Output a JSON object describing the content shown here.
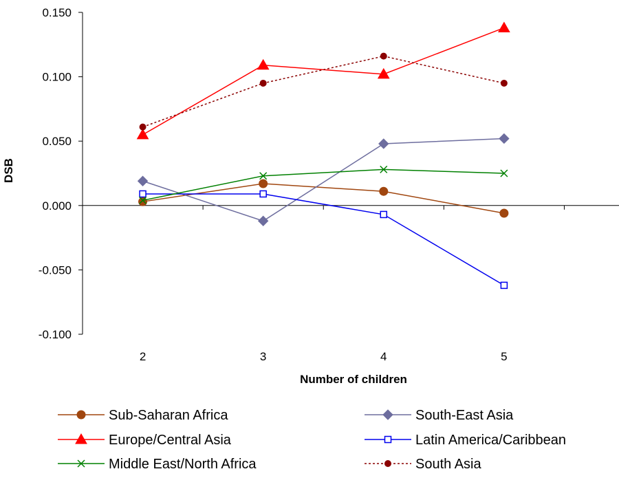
{
  "chart_data": {
    "type": "line",
    "title": "",
    "xlabel": "Number of children",
    "ylabel": "DSB",
    "categories": [
      "2",
      "3",
      "4",
      "5"
    ],
    "yticks": [
      "0.150",
      "0.100",
      "0.050",
      "0.000",
      "-0.050",
      "-0.100"
    ],
    "ylim": [
      -0.1,
      0.15
    ],
    "grid": false,
    "legend_position": "bottom",
    "series": [
      {
        "name": "Sub-Saharan Africa",
        "values": [
          0.003,
          0.017,
          0.011,
          -0.006
        ],
        "color": "#a0460f",
        "marker": "circle",
        "dash": "solid"
      },
      {
        "name": "South-East Asia",
        "values": [
          0.019,
          -0.012,
          0.048,
          0.052
        ],
        "color": "#6d6d9e",
        "marker": "diamond",
        "dash": "solid"
      },
      {
        "name": "Europe/Central Asia",
        "values": [
          0.055,
          0.109,
          0.102,
          0.138
        ],
        "color": "#ff0000",
        "marker": "triangle",
        "dash": "solid"
      },
      {
        "name": "Latin America/Caribbean",
        "values": [
          0.009,
          0.009,
          -0.007,
          -0.062
        ],
        "color": "#0000ee",
        "marker": "square-open",
        "dash": "solid"
      },
      {
        "name": "Middle East/North Africa",
        "values": [
          0.004,
          0.023,
          0.028,
          0.025
        ],
        "color": "#008000",
        "marker": "x",
        "dash": "solid"
      },
      {
        "name": "South Asia",
        "values": [
          0.061,
          0.095,
          0.116,
          0.095
        ],
        "color": "#8b0000",
        "marker": "circle-small",
        "dash": "dotted"
      }
    ]
  }
}
